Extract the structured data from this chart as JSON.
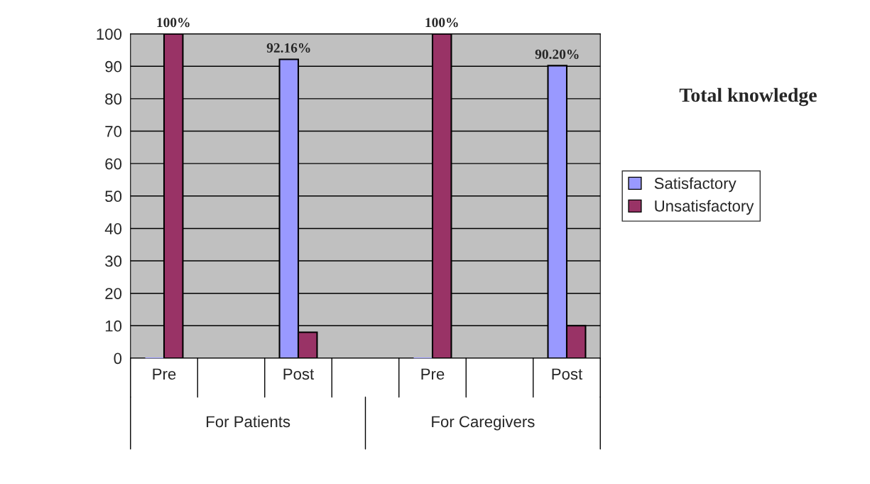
{
  "chart_data": {
    "type": "bar",
    "title": "Total knowledge",
    "categories": [
      "Pre",
      null,
      "Post",
      null,
      "Pre",
      null,
      "Post"
    ],
    "series": [
      {
        "name": "Satisfactory",
        "color": "#9999ff",
        "values": [
          0,
          null,
          92.16,
          null,
          0,
          null,
          90.2
        ],
        "value_labels": [
          null,
          null,
          "92.16%",
          null,
          null,
          null,
          "90.20%"
        ]
      },
      {
        "name": "Unsatisfactory",
        "color": "#993366",
        "values": [
          100,
          null,
          8,
          null,
          100,
          null,
          10
        ],
        "value_labels": [
          "100%",
          null,
          null,
          null,
          "100%",
          null,
          null
        ]
      }
    ],
    "annotations": [
      "For Patients",
      "For Caregivers"
    ],
    "ylim": [
      0,
      100
    ],
    "yticks": [
      0,
      10,
      20,
      30,
      40,
      50,
      60,
      70,
      80,
      90,
      100
    ],
    "grid": "y",
    "legend": "right"
  }
}
